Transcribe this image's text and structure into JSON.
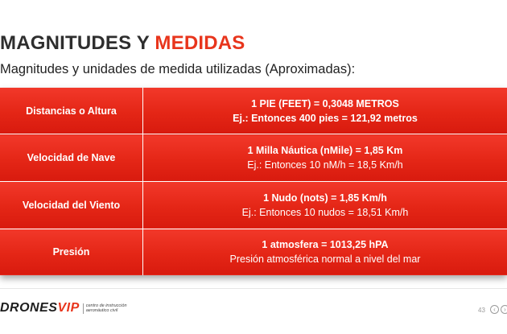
{
  "slide": {
    "title_part1": "MAGNITUDES Y ",
    "title_part2": "MEDIDAS",
    "subtitle": "Magnitudes y unidades de medida utilizadas (Aproximadas):",
    "accent_color": "#e8351c",
    "table_color": "#e42616"
  },
  "table": {
    "rows": [
      {
        "label": "Distancias o Altura",
        "line1": "1 PIE (FEET) = 0,3048 METROS",
        "line2": "Ej.: Entonces 400 pies = 121,92 metros"
      },
      {
        "label": "Velocidad de Nave",
        "line1": "1 Milla Náutica (nMile) = 1,85 Km",
        "line2": "Ej.: Entonces 10 nM/h = 18,5 Km/h"
      },
      {
        "label": "Velocidad del Viento",
        "line1": "1 Nudo (nots) = 1,85 Km/h",
        "line2": "Ej.: Entonces 10 nudos = 18,51 Km/h"
      },
      {
        "label": "Presión",
        "line1": "1 atmosfera = 1013,25 hPA",
        "line2": "Presión atmosférica normal a nivel del mar"
      }
    ]
  },
  "footer": {
    "logo_part1": "DRONES",
    "logo_part2": "VIP",
    "logo_sub1": "centro de instrucción",
    "logo_sub2": "aeronáutico civil",
    "page_number": "43",
    "nav_prev_icon": "chevron-left-icon",
    "nav_next_icon": "chevron-right-icon"
  }
}
